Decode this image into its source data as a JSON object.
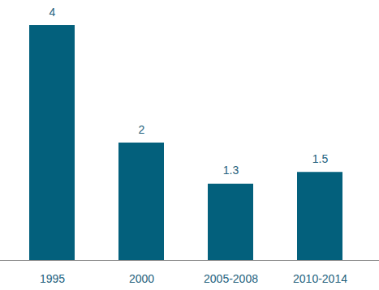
{
  "chart_data": {
    "type": "bar",
    "categories": [
      "1995",
      "2000",
      "2005-2008",
      "2010-2014"
    ],
    "values": [
      4,
      2,
      1.3,
      1.5
    ],
    "color": "#03607c",
    "ylim": [
      0,
      4
    ],
    "data_labels": true,
    "tick_labels": "x"
  }
}
